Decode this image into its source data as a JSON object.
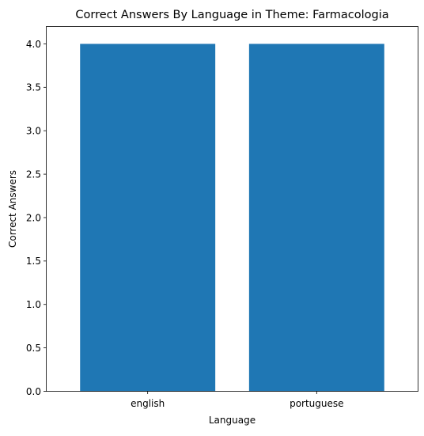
{
  "chart_data": {
    "type": "bar",
    "title": "Correct Answers By Language in Theme: Farmacologia",
    "xlabel": "Language",
    "ylabel": "Correct Answers",
    "categories": [
      "english",
      "portuguese"
    ],
    "values": [
      4,
      4
    ],
    "ylim": [
      0,
      4.2
    ],
    "yticks": [
      "0.0",
      "0.5",
      "1.0",
      "1.5",
      "2.0",
      "2.5",
      "3.0",
      "3.5",
      "4.0"
    ],
    "grid": false,
    "legend": "none",
    "bar_color": "#1f77b4"
  }
}
